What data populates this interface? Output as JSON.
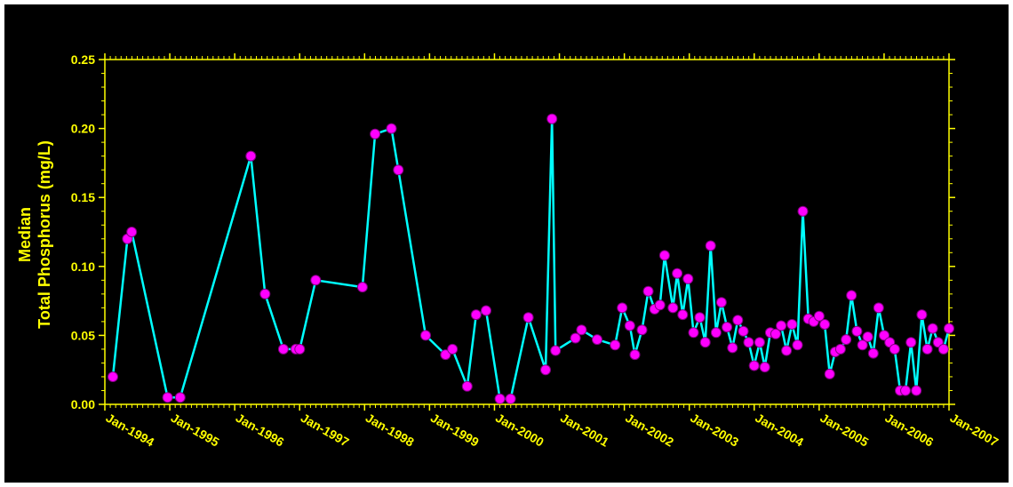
{
  "chart_data": {
    "type": "line",
    "ylabel_lines": [
      "Median",
      "Total Phosphorus (mg/L)"
    ],
    "xlabel": "",
    "xlim": [
      "1994-01-01",
      "2007-01-01"
    ],
    "ylim": [
      0,
      0.25
    ],
    "x_tick_labels": [
      "Jan-1994",
      "Jan-1995",
      "Jan-1996",
      "Jan-1997",
      "Jan-1998",
      "Jan-1999",
      "Jan-2000",
      "Jan-2001",
      "Jan-2002",
      "Jan-2003",
      "Jan-2004",
      "Jan-2005",
      "Jan-2006",
      "Jan-2007"
    ],
    "y_tick_labels": [
      "0.00",
      "0.05",
      "0.10",
      "0.15",
      "0.20",
      "0.25"
    ],
    "y_ticks": [
      0,
      0.05,
      0.1,
      0.15,
      0.2,
      0.25
    ],
    "grid": false,
    "legend": "none",
    "colors": {
      "background": "#000000",
      "axis": "#ffff00",
      "text": "#ffff00",
      "line": "#00ffff",
      "marker": "#ff00ff",
      "marker_edge": "#800080"
    },
    "series": [
      {
        "points": [
          [
            "1994-02-15",
            0.02
          ],
          [
            "1994-05-08",
            0.12
          ],
          [
            "1994-06-01",
            0.125
          ],
          [
            "1994-12-20",
            0.005
          ],
          [
            "1995-03-01",
            0.005
          ],
          [
            "1996-04-01",
            0.18
          ],
          [
            "1996-06-20",
            0.08
          ],
          [
            "1996-10-01",
            0.04
          ],
          [
            "1996-12-10",
            0.04
          ],
          [
            "1997-01-01",
            0.04
          ],
          [
            "1997-04-01",
            0.09
          ],
          [
            "1997-12-20",
            0.085
          ],
          [
            "1998-03-01",
            0.196
          ],
          [
            "1998-06-01",
            0.2
          ],
          [
            "1998-07-10",
            0.17
          ],
          [
            "1998-12-10",
            0.05
          ],
          [
            "1999-04-01",
            0.036
          ],
          [
            "1999-05-10",
            0.04
          ],
          [
            "1999-08-01",
            0.013
          ],
          [
            "1999-09-20",
            0.065
          ],
          [
            "1999-11-15",
            0.068
          ],
          [
            "2000-02-01",
            0.004
          ],
          [
            "2000-04-01",
            0.004
          ],
          [
            "2000-07-10",
            0.063
          ],
          [
            "2000-10-15",
            0.025
          ],
          [
            "2000-11-20",
            0.207
          ],
          [
            "2000-12-10",
            0.039
          ],
          [
            "2001-04-01",
            0.048
          ],
          [
            "2001-05-05",
            0.054
          ],
          [
            "2001-08-01",
            0.047
          ],
          [
            "2001-11-10",
            0.043
          ],
          [
            "2001-12-20",
            0.07
          ],
          [
            "2002-02-01",
            0.057
          ],
          [
            "2002-03-01",
            0.036
          ],
          [
            "2002-04-10",
            0.054
          ],
          [
            "2002-05-15",
            0.082
          ],
          [
            "2002-06-20",
            0.069
          ],
          [
            "2002-07-20",
            0.072
          ],
          [
            "2002-08-15",
            0.108
          ],
          [
            "2002-10-01",
            0.07
          ],
          [
            "2002-10-25",
            0.095
          ],
          [
            "2002-11-25",
            0.065
          ],
          [
            "2002-12-25",
            0.091
          ],
          [
            "2003-01-25",
            0.052
          ],
          [
            "2003-03-01",
            0.063
          ],
          [
            "2003-04-01",
            0.045
          ],
          [
            "2003-05-01",
            0.115
          ],
          [
            "2003-06-01",
            0.052
          ],
          [
            "2003-07-01",
            0.074
          ],
          [
            "2003-08-01",
            0.056
          ],
          [
            "2003-09-01",
            0.041
          ],
          [
            "2003-10-01",
            0.061
          ],
          [
            "2003-11-01",
            0.053
          ],
          [
            "2003-12-01",
            0.045
          ],
          [
            "2004-01-01",
            0.028
          ],
          [
            "2004-02-01",
            0.045
          ],
          [
            "2004-03-01",
            0.027
          ],
          [
            "2004-04-01",
            0.052
          ],
          [
            "2004-05-01",
            0.051
          ],
          [
            "2004-06-01",
            0.057
          ],
          [
            "2004-07-01",
            0.039
          ],
          [
            "2004-08-01",
            0.058
          ],
          [
            "2004-09-01",
            0.043
          ],
          [
            "2004-10-01",
            0.14
          ],
          [
            "2004-11-01",
            0.062
          ],
          [
            "2004-12-01",
            0.06
          ],
          [
            "2005-01-01",
            0.064
          ],
          [
            "2005-02-01",
            0.058
          ],
          [
            "2005-03-01",
            0.022
          ],
          [
            "2005-04-01",
            0.038
          ],
          [
            "2005-05-01",
            0.04
          ],
          [
            "2005-06-01",
            0.047
          ],
          [
            "2005-07-01",
            0.079
          ],
          [
            "2005-08-01",
            0.053
          ],
          [
            "2005-09-01",
            0.043
          ],
          [
            "2005-10-01",
            0.049
          ],
          [
            "2005-11-01",
            0.037
          ],
          [
            "2005-12-01",
            0.07
          ],
          [
            "2006-01-01",
            0.05
          ],
          [
            "2006-02-01",
            0.045
          ],
          [
            "2006-03-01",
            0.04
          ],
          [
            "2006-04-01",
            0.01
          ],
          [
            "2006-05-01",
            0.01
          ],
          [
            "2006-06-01",
            0.045
          ],
          [
            "2006-07-01",
            0.01
          ],
          [
            "2006-08-01",
            0.065
          ],
          [
            "2006-09-01",
            0.04
          ],
          [
            "2006-10-01",
            0.055
          ],
          [
            "2006-11-01",
            0.045
          ],
          [
            "2006-12-01",
            0.04
          ],
          [
            "2007-01-01",
            0.055
          ]
        ]
      }
    ]
  }
}
